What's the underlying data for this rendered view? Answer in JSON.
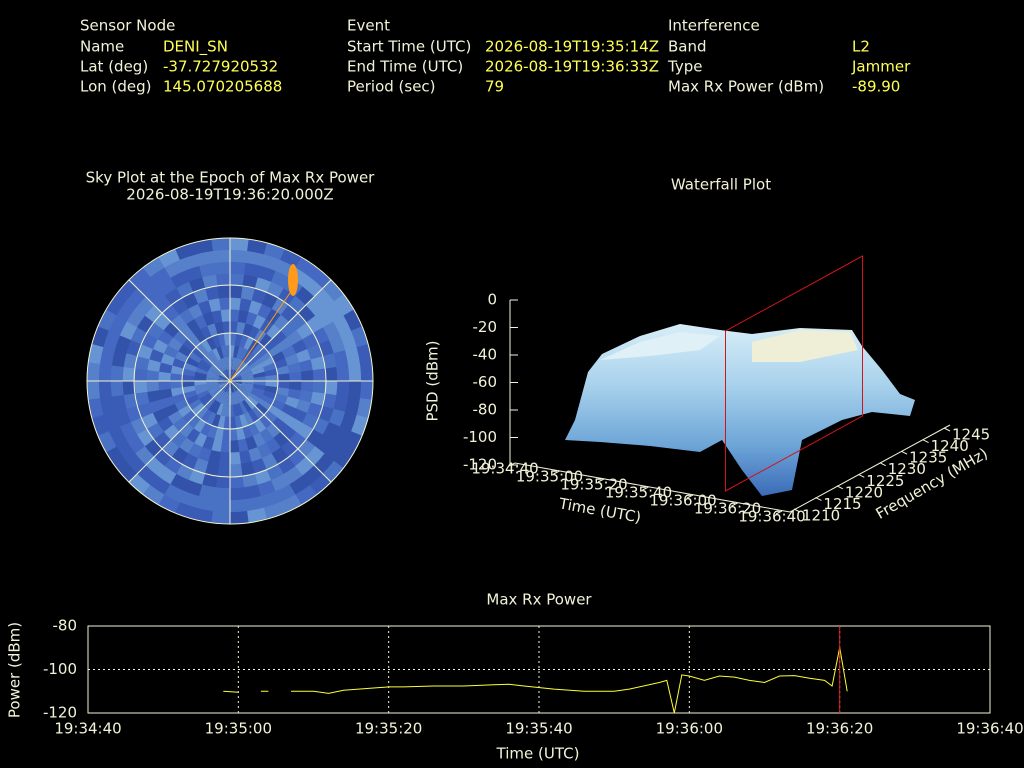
{
  "header": {
    "sections": [
      {
        "title": "Sensor Node",
        "fields": [
          {
            "label": "Name",
            "value": "DENI_SN"
          },
          {
            "label": "Lat (deg)",
            "value": "-37.727920532"
          },
          {
            "label": "Lon (deg)",
            "value": "145.070205688"
          }
        ]
      },
      {
        "title": "Event",
        "fields": [
          {
            "label": "Start Time (UTC)",
            "value": "2026-08-19T19:35:14Z"
          },
          {
            "label": "End Time (UTC)",
            "value": "2026-08-19T19:36:33Z"
          },
          {
            "label": "Period (sec)",
            "value": "79"
          }
        ]
      },
      {
        "title": "Interference",
        "fields": [
          {
            "label": "Band",
            "value": "L2"
          },
          {
            "label": "Type",
            "value": "Jammer"
          },
          {
            "label": "Max Rx Power (dBm)",
            "value": "-89.90"
          }
        ]
      }
    ]
  },
  "chart_data": [
    {
      "type": "polar",
      "title": "Sky Plot at the Epoch of Max Rx Power",
      "subtitle": "2026-08-19T19:36:20.000Z"
    },
    {
      "type": "surface3d",
      "title": "Waterfall Plot",
      "zlabel": "PSD (dBm)",
      "xlabel": "Time (UTC)",
      "ylabel": "Frequency (MHz)",
      "zlim": [
        -120,
        0
      ],
      "zticks": [
        0,
        -20,
        -40,
        -60,
        -80,
        -100,
        -120
      ],
      "xlim": [
        "19:34:40",
        "19:36:40"
      ],
      "xticks": [
        "19:34:40",
        "19:35:00",
        "19:35:20",
        "19:35:40",
        "19:36:00",
        "19:36:20",
        "19:36:40"
      ],
      "ylim": [
        1210,
        1245
      ],
      "yticks": [
        1210,
        1215,
        1220,
        1225,
        1230,
        1235,
        1240,
        1245
      ],
      "marker_x": "19:36:20",
      "marker_color": "#d0141c"
    },
    {
      "type": "line",
      "title": "Max Rx Power",
      "xlabel": "Time (UTC)",
      "ylabel": "Power (dBm)",
      "xlim": [
        "19:34:40",
        "19:36:40"
      ],
      "xticks": [
        "19:34:40",
        "19:35:00",
        "19:35:20",
        "19:35:40",
        "19:36:00",
        "19:36:20",
        "19:36:40"
      ],
      "ylim": [
        -120,
        -80
      ],
      "yticks": [
        -80,
        -100,
        -120
      ],
      "grid": true,
      "marker_x": "19:36:20",
      "marker_color": "#e0141c",
      "x": [
        "19:34:58",
        "19:35:00",
        "19:35:02",
        "19:35:03",
        "19:35:04",
        "19:35:05",
        "19:35:07",
        "19:35:10",
        "19:35:12",
        "19:35:14",
        "19:35:16",
        "19:35:18",
        "19:35:20",
        "19:35:22",
        "19:35:26",
        "19:35:30",
        "19:35:34",
        "19:35:36",
        "19:35:38",
        "19:35:42",
        "19:35:46",
        "19:35:50",
        "19:35:52",
        "19:35:56",
        "19:35:57",
        "19:35:58",
        "19:35:59",
        "19:36:00",
        "19:36:02",
        "19:36:04",
        "19:36:06",
        "19:36:08",
        "19:36:10",
        "19:36:12",
        "19:36:14",
        "19:36:16",
        "19:36:18",
        "19:36:19",
        "19:36:20",
        "19:36:21"
      ],
      "series": [
        {
          "name": "Max Rx Power",
          "color": "#ffff33",
          "values": [
            -110,
            -110.5,
            null,
            -110,
            -110,
            null,
            -110,
            -110,
            -111,
            -109.5,
            -109,
            -108.5,
            -108,
            -108,
            -107.6,
            -107.6,
            -107,
            -106.8,
            -107.6,
            -109,
            -110,
            -110,
            -109,
            -106,
            -105,
            -120,
            -102.5,
            -103,
            -105,
            -103,
            -103.5,
            -105,
            -106,
            -103,
            -102.8,
            -104,
            -105,
            -107.6,
            -89.9,
            -110
          ]
        }
      ]
    }
  ]
}
